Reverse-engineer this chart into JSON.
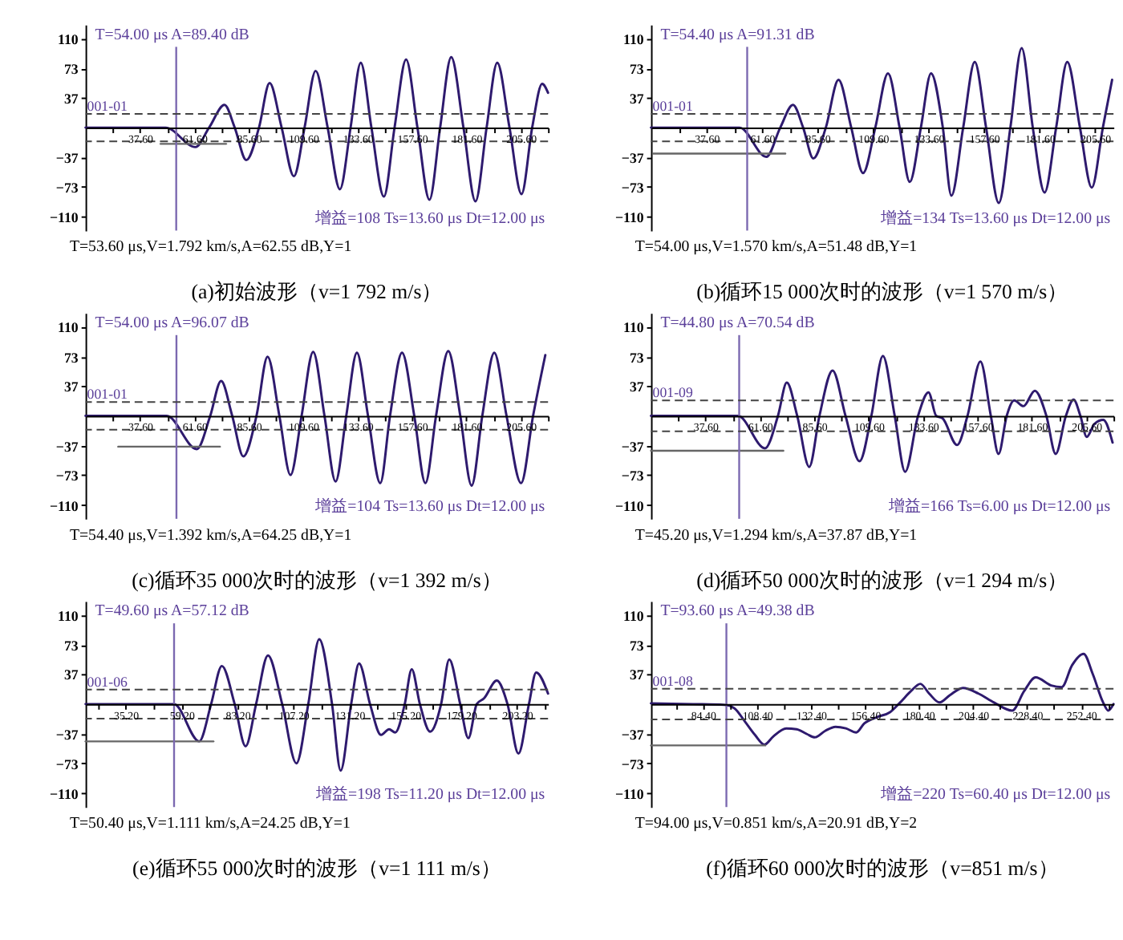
{
  "chart_data": [
    {
      "type": "line",
      "title": "(a)初始波形（v=1 792 m/s）",
      "xlim": [
        13.6,
        217.6
      ],
      "ylim": [
        -127,
        127
      ],
      "xticks": [
        {
          "value": 37.6,
          "label": "37.60"
        },
        {
          "value": 61.6,
          "label": "61.60"
        },
        {
          "value": 85.6,
          "label": "85.60"
        },
        {
          "value": 109.6,
          "label": "109.60"
        },
        {
          "value": 133.6,
          "label": "133.60"
        },
        {
          "value": 157.6,
          "label": "157.60"
        },
        {
          "value": 181.6,
          "label": "181.60"
        },
        {
          "value": 205.6,
          "label": "205.60"
        },
        {
          "value": 25.6,
          "label": null
        },
        {
          "value": 49.6,
          "label": null
        },
        {
          "value": 73.6,
          "label": null
        },
        {
          "value": 97.6,
          "label": null
        },
        {
          "value": 121.6,
          "label": null
        },
        {
          "value": 145.6,
          "label": null
        },
        {
          "value": 169.6,
          "label": null
        },
        {
          "value": 193.6,
          "label": null
        },
        {
          "value": 217.6,
          "label": null
        }
      ],
      "yticks": [
        110,
        73,
        37,
        {
          "value": -37,
          "label": "−37"
        },
        {
          "value": -73,
          "label": "−73"
        },
        {
          "value": -110,
          "label": "−110"
        }
      ],
      "series": [
        {
          "color": "#2e1a6e",
          "x": [
            13.6,
            48.9,
            62.1,
            68.1,
            74.9,
            79.4,
            84.5,
            90.1,
            94.8,
            100.1,
            105.5,
            110.2,
            115.1,
            120.4,
            125.8,
            130.5,
            135,
            139.7,
            145.2,
            149.9,
            155,
            160,
            165.3,
            170,
            174.9,
            180.3,
            185.6,
            190.5,
            195.2,
            200.6,
            205.9,
            210.6,
            215,
            217.6
          ],
          "values": [
            0,
            0,
            -24,
            0,
            28,
            0,
            -40,
            0,
            55,
            0,
            -60,
            0,
            70,
            0,
            -76,
            0,
            80,
            0,
            -85,
            0,
            84,
            0,
            -89,
            0,
            87,
            0,
            -91,
            0,
            80,
            0,
            -82,
            0,
            54,
            43
          ]
        },
        {
          "color": "#666666",
          "x": [
            46.7,
            75.6
          ],
          "values": [
            -20,
            -20
          ]
        }
      ],
      "ref_lines": [
        {
          "axis": "x",
          "value": 53.6,
          "color": "#7b68b0",
          "line_style": "solid"
        },
        {
          "axis": "y",
          "value": 17,
          "color": "#444444",
          "line_style": "dashed"
        },
        {
          "axis": "y",
          "value": -17,
          "color": "#444444",
          "line_style": "dashed"
        }
      ],
      "annotations": [
        "T=54.00 μs A=89.40 dB",
        "001-01",
        "增益=108 Ts=13.60 μs Dt=12.00 μs",
        "T=53.60 μs,V=1.792 km/s,A=62.55 dB,Y=1"
      ],
      "grid": false,
      "marker": "none",
      "line_style": "solid"
    },
    {
      "type": "line",
      "title": "(b)循环15 000次时的波形（v=1 570 m/s）",
      "xlim": [
        13.6,
        213.6
      ],
      "ylim": [
        -127,
        127
      ],
      "xticks": [
        {
          "value": 37.6,
          "label": "37.60"
        },
        {
          "value": 61.6,
          "label": "61.60"
        },
        {
          "value": 85.6,
          "label": "85.60"
        },
        {
          "value": 109.6,
          "label": "109.60"
        },
        {
          "value": 133.6,
          "label": "133.60"
        },
        {
          "value": 157.6,
          "label": "157.60"
        },
        {
          "value": 181.6,
          "label": "181.60"
        },
        {
          "value": 205.6,
          "label": "205.60"
        },
        {
          "value": 25.6,
          "label": null
        },
        {
          "value": 49.6,
          "label": null
        },
        {
          "value": 73.6,
          "label": null
        },
        {
          "value": 97.6,
          "label": null
        },
        {
          "value": 121.6,
          "label": null
        },
        {
          "value": 145.6,
          "label": null
        },
        {
          "value": 169.6,
          "label": null
        },
        {
          "value": 193.6,
          "label": null
        }
      ],
      "yticks": [
        110,
        73,
        37,
        {
          "value": -37,
          "label": "−37"
        },
        {
          "value": -73,
          "label": "−73"
        },
        {
          "value": -110,
          "label": "−110"
        }
      ],
      "series": [
        {
          "color": "#2e1a6e",
          "x": [
            13.6,
            51.9,
            63.5,
            69.5,
            75,
            79.4,
            83.8,
            89.2,
            94.7,
            100.2,
            105.3,
            110.6,
            116.1,
            121.1,
            125.5,
            130.3,
            134.7,
            139.8,
            143.5,
            148.6,
            153.6,
            158.5,
            164,
            169,
            173.9,
            178.7,
            183.8,
            188.8,
            193.6,
            199.1,
            204.2,
            209,
            213
          ],
          "values": [
            0,
            0,
            -36,
            0,
            28,
            0,
            -38,
            0,
            59,
            0,
            -56,
            0,
            67,
            0,
            -67,
            0,
            67,
            0,
            -84,
            0,
            81,
            0,
            -93,
            0,
            98,
            0,
            -80,
            0,
            81,
            0,
            -74,
            0,
            59
          ]
        },
        {
          "color": "#666666",
          "x": [
            14.5,
            71.7
          ],
          "values": [
            -32,
            -32
          ]
        }
      ],
      "ref_lines": [
        {
          "axis": "x",
          "value": 55.2,
          "color": "#7b68b0",
          "line_style": "solid"
        },
        {
          "axis": "y",
          "value": 17,
          "color": "#444444",
          "line_style": "dashed"
        },
        {
          "axis": "y",
          "value": -17,
          "color": "#444444",
          "line_style": "dashed"
        }
      ],
      "annotations": [
        "T=54.40 μs A=91.31 dB",
        "001-01",
        "增益=134 Ts=13.60 μs Dt=12.00 μs",
        "T=54.00 μs,V=1.570 km/s,A=51.48 dB,Y=1"
      ],
      "grid": false,
      "marker": "none",
      "line_style": "solid"
    },
    {
      "type": "line",
      "title": "(c)循环35 000次时的波形（v=1 392 m/s）",
      "xlim": [
        13.6,
        217.6
      ],
      "ylim": [
        -127,
        127
      ],
      "xticks": [
        {
          "value": 37.6,
          "label": "37.60"
        },
        {
          "value": 61.6,
          "label": "61.60"
        },
        {
          "value": 85.6,
          "label": "85.60"
        },
        {
          "value": 109.6,
          "label": "109.60"
        },
        {
          "value": 133.6,
          "label": "133.60"
        },
        {
          "value": 157.6,
          "label": "157.60"
        },
        {
          "value": 181.6,
          "label": "181.60"
        },
        {
          "value": 205.6,
          "label": "205.60"
        },
        {
          "value": 25.6,
          "label": null
        },
        {
          "value": 49.6,
          "label": null
        },
        {
          "value": 73.6,
          "label": null
        },
        {
          "value": 97.6,
          "label": null
        },
        {
          "value": 121.6,
          "label": null
        },
        {
          "value": 145.6,
          "label": null
        },
        {
          "value": 169.6,
          "label": null
        },
        {
          "value": 193.6,
          "label": null
        },
        {
          "value": 217.6,
          "label": null
        }
      ],
      "yticks": [
        110,
        73,
        37,
        {
          "value": -37,
          "label": "−37"
        },
        {
          "value": -73,
          "label": "−73"
        },
        {
          "value": -110,
          "label": "−110"
        }
      ],
      "series": [
        {
          "color": "#2e1a6e",
          "x": [
            13.6,
            49.4,
            62.7,
            68.6,
            73.4,
            78.3,
            83.2,
            89,
            93.9,
            99.1,
            104,
            108.9,
            114,
            119,
            123.9,
            128.6,
            133.3,
            138.2,
            143.6,
            147.9,
            153.2,
            158.6,
            163.5,
            168.2,
            173.6,
            178.9,
            183.9,
            188.6,
            193.9,
            199.3,
            205.7,
            211,
            216.4
          ],
          "values": [
            0,
            0,
            -41,
            0,
            43,
            0,
            -50,
            0,
            73,
            0,
            -73,
            0,
            79,
            0,
            -81,
            0,
            78,
            0,
            -83,
            0,
            78,
            0,
            -83,
            0,
            80,
            0,
            -86,
            0,
            78,
            0,
            -83,
            0,
            75
          ]
        },
        {
          "color": "#666666",
          "x": [
            28,
            72.9
          ],
          "values": [
            -38,
            -38
          ]
        }
      ],
      "ref_lines": [
        {
          "axis": "x",
          "value": 53.7,
          "color": "#7b68b0",
          "line_style": "solid"
        },
        {
          "axis": "y",
          "value": 17,
          "color": "#444444",
          "line_style": "dashed"
        },
        {
          "axis": "y",
          "value": -17,
          "color": "#444444",
          "line_style": "dashed"
        }
      ],
      "annotations": [
        "T=54.00 μs A=96.07 dB",
        "001-01",
        "增益=104 Ts=13.60 μs Dt=12.00 μs",
        "T=54.40 μs,V=1.392 km/s,A=64.25 dB,Y=1"
      ],
      "grid": false,
      "marker": "none",
      "line_style": "solid"
    },
    {
      "type": "line",
      "title": "(d)循环50 000次时的波形（v=1 294 m/s）",
      "xlim": [
        13.6,
        217.6
      ],
      "ylim": [
        -127,
        127
      ],
      "xticks": [
        {
          "value": 37.6,
          "label": "37.60"
        },
        {
          "value": 61.6,
          "label": "61.60"
        },
        {
          "value": 85.6,
          "label": "85.60"
        },
        {
          "value": 109.6,
          "label": "109.60"
        },
        {
          "value": 133.6,
          "label": "133.60"
        },
        {
          "value": 157.6,
          "label": "157.60"
        },
        {
          "value": 181.6,
          "label": "181.60"
        },
        {
          "value": 205.6,
          "label": "205.60"
        },
        {
          "value": 25.6,
          "label": null
        },
        {
          "value": 49.6,
          "label": null
        },
        {
          "value": 73.6,
          "label": null
        },
        {
          "value": 97.6,
          "label": null
        },
        {
          "value": 121.6,
          "label": null
        },
        {
          "value": 145.6,
          "label": null
        },
        {
          "value": 169.6,
          "label": null
        },
        {
          "value": 193.6,
          "label": null
        },
        {
          "value": 217.6,
          "label": null
        }
      ],
      "yticks": [
        110,
        73,
        37,
        {
          "value": -37,
          "label": "−37"
        },
        {
          "value": -73,
          "label": "−73"
        },
        {
          "value": -110,
          "label": "−110"
        }
      ],
      "series": [
        {
          "color": "#2e1a6e",
          "x": [
            13.6,
            52,
            63.9,
            69.6,
            73.5,
            78.1,
            83.4,
            87.9,
            93.7,
            99.4,
            105.6,
            110.8,
            115.9,
            121.1,
            125.7,
            131.4,
            136,
            139.4,
            142.2,
            148.6,
            153.2,
            158.9,
            163.5,
            166.9,
            170.5,
            173.8,
            177.9,
            182.9,
            188,
            192.1,
            196.6,
            200,
            203,
            205.8,
            209.2,
            213.1,
            217.2
          ],
          "values": [
            0,
            0,
            -40,
            0,
            41,
            0,
            -63,
            0,
            56,
            0,
            -56,
            0,
            74,
            0,
            -69,
            0,
            29,
            0,
            -3,
            -36,
            0,
            67,
            0,
            -47,
            0,
            19,
            12,
            31,
            0,
            -47,
            0,
            20,
            0,
            -26,
            -10,
            -5,
            -33
          ]
        },
        {
          "color": "#666666",
          "x": [
            13.6,
            72
          ],
          "values": [
            -43,
            -43
          ]
        }
      ],
      "ref_lines": [
        {
          "axis": "x",
          "value": 52.5,
          "color": "#7b68b0",
          "line_style": "solid"
        },
        {
          "axis": "y",
          "value": 19,
          "color": "#444444",
          "line_style": "dashed"
        },
        {
          "axis": "y",
          "value": -19,
          "color": "#444444",
          "line_style": "dashed"
        }
      ],
      "annotations": [
        "T=44.80 μs A=70.54 dB",
        "001-09",
        "增益=166 Ts=6.00 μs Dt=12.00 μs",
        "T=45.20 μs,V=1.294 km/s,A=37.87 dB,Y=1"
      ],
      "grid": false,
      "marker": "none",
      "line_style": "solid"
    },
    {
      "type": "line",
      "title": "(e)循环55 000次时的波形（v=1 111 m/s）",
      "xlim": [
        18,
        216.5
      ],
      "ylim": [
        -127,
        127
      ],
      "xticks": [
        {
          "value": 35.2,
          "label": "35.20"
        },
        {
          "value": 59.2,
          "label": "59.20"
        },
        {
          "value": 83.2,
          "label": "83.20"
        },
        {
          "value": 107.2,
          "label": "107.20"
        },
        {
          "value": 131.2,
          "label": "131.20"
        },
        {
          "value": 155.2,
          "label": "155.20"
        },
        {
          "value": 179.2,
          "label": "179.20"
        },
        {
          "value": 203.2,
          "label": "203.20"
        },
        {
          "value": 23.2,
          "label": null
        },
        {
          "value": 47.2,
          "label": null
        },
        {
          "value": 71.2,
          "label": null
        },
        {
          "value": 95.2,
          "label": null
        },
        {
          "value": 119.2,
          "label": null
        },
        {
          "value": 143.2,
          "label": null
        },
        {
          "value": 167.2,
          "label": null
        },
        {
          "value": 191.2,
          "label": null
        },
        {
          "value": 215.2,
          "label": null
        }
      ],
      "yticks": [
        110,
        73,
        37,
        {
          "value": -37,
          "label": "−37"
        },
        {
          "value": -73,
          "label": "−73"
        },
        {
          "value": -110,
          "label": "−110"
        }
      ],
      "series": [
        {
          "color": "#2e1a6e",
          "x": [
            18,
            56,
            66.8,
            71.9,
            76.5,
            82,
            86.7,
            91.2,
            96.3,
            102.4,
            108.5,
            113.6,
            118.3,
            123.8,
            127.5,
            132,
            135.4,
            140.1,
            144.8,
            148.3,
            150.9,
            155,
            158,
            161.5,
            165.9,
            170.6,
            174.1,
            178.8,
            182.3,
            185.9,
            189,
            194.5,
            199.1,
            203.8,
            208.3,
            211.4,
            216.5
          ],
          "values": [
            0,
            0,
            -46,
            0,
            47,
            0,
            -52,
            0,
            60,
            0,
            -73,
            0,
            80,
            0,
            -82,
            0,
            50,
            0,
            -38,
            -31,
            -35,
            0,
            43,
            0,
            -34,
            0,
            55,
            0,
            -42,
            0,
            7,
            29,
            0,
            -61,
            0,
            39,
            13
          ]
        },
        {
          "color": "#666666",
          "x": [
            18,
            72.9
          ],
          "values": [
            -46,
            -46
          ]
        }
      ],
      "ref_lines": [
        {
          "axis": "x",
          "value": 56,
          "color": "#7b68b0",
          "line_style": "solid"
        },
        {
          "axis": "y",
          "value": 18,
          "color": "#444444",
          "line_style": "dashed"
        },
        {
          "axis": "y",
          "value": -18,
          "color": "#444444",
          "line_style": "dashed"
        }
      ],
      "annotations": [
        "T=49.60 μs A=57.12 dB",
        "001-06",
        "增益=198 Ts=11.20 μs Dt=12.00 μs",
        "T=50.40 μs,V=1.111 km/s,A=24.25 dB,Y=1"
      ],
      "grid": false,
      "marker": "none",
      "line_style": "solid"
    },
    {
      "type": "line",
      "title": "(f)循环60 000次时的波形（v=851 m/s）",
      "xlim": [
        61.3,
        266.8
      ],
      "ylim": [
        -127,
        127
      ],
      "xticks": [
        {
          "value": 84.4,
          "label": "84.40"
        },
        {
          "value": 108.4,
          "label": "108.40"
        },
        {
          "value": 132.4,
          "label": "132.40"
        },
        {
          "value": 156.4,
          "label": "156.40"
        },
        {
          "value": 180.4,
          "label": "180.40"
        },
        {
          "value": 204.4,
          "label": "204.40"
        },
        {
          "value": 228.4,
          "label": "228.40"
        },
        {
          "value": 252.4,
          "label": "252.40"
        },
        {
          "value": 72.4,
          "label": null
        },
        {
          "value": 96.4,
          "label": null
        },
        {
          "value": 120.4,
          "label": null
        },
        {
          "value": 144.4,
          "label": null
        },
        {
          "value": 168.4,
          "label": null
        },
        {
          "value": 192.4,
          "label": null
        },
        {
          "value": 216.4,
          "label": null
        },
        {
          "value": 240.4,
          "label": null
        },
        {
          "value": 264.4,
          "label": null
        }
      ],
      "yticks": [
        110,
        73,
        37,
        {
          "value": -37,
          "label": "−37"
        },
        {
          "value": -73,
          "label": "−73"
        },
        {
          "value": -110,
          "label": "−110"
        }
      ],
      "series": [
        {
          "color": "#2e1a6e",
          "x": [
            61.3,
            80,
            94,
            98.3,
            102.9,
            107.5,
            111.7,
            115.6,
            121.4,
            126,
            130.6,
            134.1,
            138.7,
            143.3,
            147.9,
            152.5,
            156,
            161.8,
            167.5,
            172,
            176.8,
            181,
            184.9,
            189.5,
            194.1,
            199.9,
            206.8,
            213.7,
            221.8,
            227.1,
            232.2,
            239.1,
            243.8,
            248.4,
            253.5,
            257.6,
            262.2,
            264.5,
            266.8
          ],
          "values": [
            1,
            0,
            -1,
            -5,
            -21,
            -38,
            -50,
            -40,
            -30,
            -31,
            -37,
            -41,
            -33,
            -28,
            -30,
            -35,
            -24,
            -16,
            -10,
            2,
            16,
            25,
            13,
            2,
            11,
            20,
            13,
            2,
            -8,
            16,
            33,
            23,
            21,
            48,
            62,
            37,
            2,
            -8,
            0
          ]
        },
        {
          "color": "#666666",
          "x": [
            61.3,
            112.1
          ],
          "values": [
            -51,
            -51
          ]
        }
      ],
      "ref_lines": [
        {
          "axis": "x",
          "value": 94.8,
          "color": "#7b68b0",
          "line_style": "solid"
        },
        {
          "axis": "y",
          "value": 19,
          "color": "#444444",
          "line_style": "dashed"
        },
        {
          "axis": "y",
          "value": -19,
          "color": "#444444",
          "line_style": "dashed"
        }
      ],
      "annotations": [
        "T=93.60 μs A=49.38 dB",
        "001-08",
        "增益=220 Ts=60.40 μs Dt=12.00 μs",
        "T=94.00 μs,V=0.851 km/s,A=20.91 dB,Y=2"
      ],
      "grid": false,
      "marker": "none",
      "line_style": "solid"
    }
  ]
}
